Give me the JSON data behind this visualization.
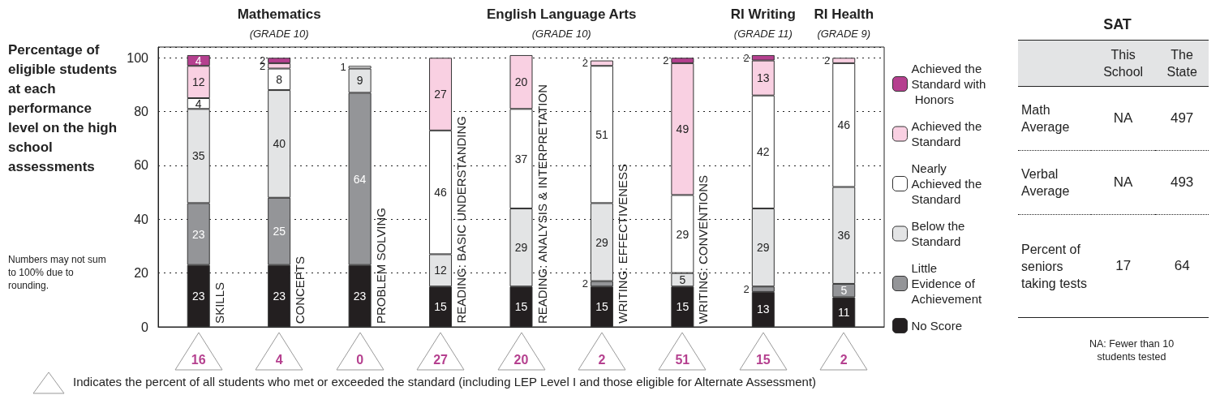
{
  "chart_data": [
    {
      "type": "bar",
      "stacked": true,
      "data_labels": true,
      "grid": "y",
      "legend": "right",
      "ylabel": "Percentage of eligible students at each performance level on the high school assessments",
      "categories": [
        "SKILLS",
        "CONCEPTS",
        "PROBLEM SOLVING",
        "READING: BASIC UNDERSTANDING",
        "READING: ANALYSIS & INTERPRETATION",
        "WRITING: EFFECTIVENESS",
        "WRITING: CONVENTIONS",
        null,
        null
      ],
      "ylim": [
        0,
        104
      ],
      "yticks": [
        0,
        20,
        40,
        60,
        80,
        100
      ],
      "series": [
        {
          "name": "No Score",
          "color": "#231f20",
          "values": [
            23,
            23,
            23,
            15,
            15,
            15,
            15,
            13,
            11
          ]
        },
        {
          "name": "Little Evidence of Achievement",
          "color": "#949598",
          "values": [
            23,
            25,
            64,
            null,
            null,
            2,
            null,
            2,
            5
          ]
        },
        {
          "name": "Below the Standard",
          "color": "#e3e4e5",
          "values": [
            35,
            40,
            9,
            12,
            29,
            29,
            5,
            29,
            36
          ]
        },
        {
          "name": "Nearly Achieved the Standard",
          "color": "#ffffff",
          "values": [
            4,
            8,
            1,
            46,
            37,
            51,
            29,
            42,
            46
          ]
        },
        {
          "name": "Achieved the Standard",
          "color": "#f9d0e2",
          "values": [
            12,
            2,
            null,
            27,
            20,
            2,
            49,
            13,
            2
          ]
        },
        {
          "name": "Achieved the Standard with Honors",
          "color": "#b5408f",
          "values": [
            4,
            2,
            null,
            null,
            null,
            null,
            2,
            2,
            null
          ]
        }
      ],
      "annotations": [
        "Mathematics",
        "(GRADE 10)",
        "English Language Arts",
        "(GRADE 10)",
        "RI Writing",
        "(GRADE 11)",
        "RI Health",
        "(GRADE 9)",
        "Numbers may not sum to 100% due to rounding.",
        "16",
        "4",
        "0",
        "27",
        "20",
        "2",
        "51",
        "15",
        "2",
        "Indicates the percent of all students who met or exceeded the standard (including LEP Level I and those eligible for Alternate Assessment)"
      ]
    },
    {
      "type": "other",
      "title": "SAT",
      "categories": [
        "This School",
        "The State"
      ],
      "y_categories": [
        "Math Average",
        "Verbal Average",
        "Percent of seniors taking tests"
      ],
      "cell_labels": [
        [
          "NA",
          "497"
        ],
        [
          "NA",
          "493"
        ],
        [
          "17",
          "64"
        ]
      ],
      "annotations": [
        "NA: Fewer than 10 students tested"
      ]
    }
  ]
}
